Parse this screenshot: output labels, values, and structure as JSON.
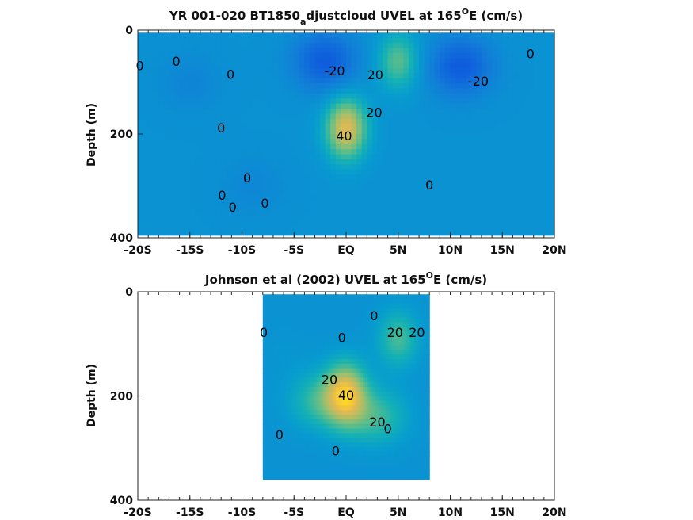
{
  "chart_data": [
    {
      "type": "heatmap",
      "title": {
        "prefix": "YR 001-020 BT1850",
        "sub": "a",
        "mid": "djustcloud UVEL at 165",
        "sup": "O",
        "suffix": "E (cm/s)"
      },
      "xlabel": "",
      "ylabel": "Depth (m)",
      "xlim": [
        -20,
        20
      ],
      "ylim": [
        0,
        400
      ],
      "y_reversed": true,
      "x_ticks": [
        -20,
        -15,
        -10,
        -5,
        0,
        5,
        10,
        15,
        20
      ],
      "x_tick_labels": [
        "-20S",
        "-15S",
        "-10S",
        "-5S",
        "EQ",
        "5N",
        "10N",
        "15N",
        "20N"
      ],
      "y_ticks": [
        0,
        200,
        400
      ],
      "y_tick_labels": [
        "0",
        "200",
        "400"
      ],
      "colorscale": "parula",
      "clim": [
        -40,
        60
      ],
      "contour_levels": [
        -20,
        0,
        20,
        40
      ],
      "data_extent": {
        "x": [
          -20,
          20
        ],
        "depth": [
          5,
          395
        ]
      },
      "features": [
        {
          "kind": "eastward core (EUC)",
          "x": 0,
          "depth": 190,
          "u": 45
        },
        {
          "kind": "eastward jet",
          "x": 5,
          "depth": 60,
          "u": 25
        },
        {
          "kind": "westward flow",
          "x": -2,
          "depth": 60,
          "u": -25
        },
        {
          "kind": "westward flow",
          "x": 11,
          "depth": 70,
          "u": -25
        },
        {
          "kind": "weak westward",
          "x": -15,
          "depth": 100,
          "u": -6
        },
        {
          "kind": "weak westward",
          "x": -9,
          "depth": 300,
          "u": -5
        }
      ],
      "contour_labels": [
        {
          "text": "0",
          "x": -19.8,
          "depth": 70
        },
        {
          "text": "0",
          "x": -16.3,
          "depth": 62
        },
        {
          "text": "0",
          "x": -11.1,
          "depth": 87
        },
        {
          "text": "0",
          "x": -12.0,
          "depth": 190
        },
        {
          "text": "0",
          "x": -9.5,
          "depth": 286
        },
        {
          "text": "0",
          "x": -11.9,
          "depth": 320
        },
        {
          "text": "0",
          "x": -10.9,
          "depth": 343
        },
        {
          "text": "0",
          "x": -7.8,
          "depth": 335
        },
        {
          "text": "-20",
          "x": -1.1,
          "depth": 80
        },
        {
          "text": "20",
          "x": 2.8,
          "depth": 88
        },
        {
          "text": "20",
          "x": 2.7,
          "depth": 160
        },
        {
          "text": "40",
          "x": -0.2,
          "depth": 205
        },
        {
          "text": "0",
          "x": 8.0,
          "depth": 300
        },
        {
          "text": "-20",
          "x": 12.7,
          "depth": 100
        },
        {
          "text": "0",
          "x": 17.7,
          "depth": 47
        }
      ]
    },
    {
      "type": "heatmap",
      "title": {
        "prefix": "Johnson et al (2002) UVEL at 165",
        "sup": "O",
        "suffix": "E (cm/s)"
      },
      "xlabel": "",
      "ylabel": "Depth (m)",
      "xlim": [
        -20,
        20
      ],
      "ylim": [
        0,
        400
      ],
      "y_reversed": true,
      "x_ticks": [
        -20,
        -15,
        -10,
        -5,
        0,
        5,
        10,
        15,
        20
      ],
      "x_tick_labels": [
        "-20S",
        "-15S",
        "-10S",
        "-5S",
        "EQ",
        "5N",
        "10N",
        "15N",
        "20N"
      ],
      "y_ticks": [
        0,
        200,
        400
      ],
      "y_tick_labels": [
        "0",
        "200",
        "400"
      ],
      "colorscale": "parula",
      "clim": [
        -40,
        60
      ],
      "contour_levels": [
        0,
        20,
        40
      ],
      "data_extent": {
        "x": [
          -8,
          8
        ],
        "depth": [
          5,
          360
        ]
      },
      "features": [
        {
          "kind": "eastward core (EUC)",
          "x": 0,
          "depth": 195,
          "u": 42
        },
        {
          "kind": "eastward jet",
          "x": 5,
          "depth": 90,
          "u": 22
        },
        {
          "kind": "eastward flank",
          "x": -2.5,
          "depth": 210,
          "u": 20
        },
        {
          "kind": "eastward flank",
          "x": 3,
          "depth": 240,
          "u": 20
        },
        {
          "kind": "weak flow",
          "x": -6,
          "depth": 120,
          "u": 2
        }
      ],
      "contour_labels": [
        {
          "text": "0",
          "x": -7.9,
          "depth": 80
        },
        {
          "text": "0",
          "x": -0.4,
          "depth": 90
        },
        {
          "text": "0",
          "x": 2.7,
          "depth": 48
        },
        {
          "text": "20",
          "x": 4.7,
          "depth": 80
        },
        {
          "text": "20",
          "x": 6.8,
          "depth": 80
        },
        {
          "text": "20",
          "x": -1.6,
          "depth": 170
        },
        {
          "text": "40",
          "x": 0.0,
          "depth": 200
        },
        {
          "text": "20",
          "x": 3.0,
          "depth": 252
        },
        {
          "text": "0",
          "x": 4.0,
          "depth": 265
        },
        {
          "text": "0",
          "x": -6.4,
          "depth": 276
        },
        {
          "text": "0",
          "x": -1.0,
          "depth": 307
        }
      ]
    }
  ]
}
